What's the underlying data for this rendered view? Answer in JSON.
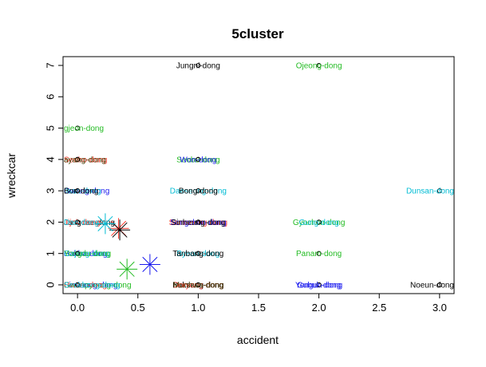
{
  "chart_data": {
    "type": "scatter",
    "title": "5cluster",
    "xlabel": "accident",
    "ylabel": "wreckcar",
    "xlim": [
      -0.12,
      3.12
    ],
    "ylim": [
      -0.28,
      7.28
    ],
    "x_ticks": [
      0.0,
      0.5,
      1.0,
      1.5,
      2.0,
      2.5,
      3.0
    ],
    "x_tick_labels": [
      "0.0",
      "0.5",
      "1.0",
      "1.5",
      "2.0",
      "2.5",
      "3.0"
    ],
    "y_ticks": [
      0,
      1,
      2,
      3,
      4,
      5,
      6,
      7
    ],
    "y_tick_labels": [
      "0",
      "1",
      "2",
      "3",
      "4",
      "5",
      "6",
      "7"
    ],
    "grid": false,
    "legend": "none",
    "points": [
      {
        "x": 1,
        "y": 7,
        "label": "Jungni-dong",
        "color": "#000000"
      },
      {
        "x": 2,
        "y": 7,
        "label": "Ojeong-dong",
        "color": "#22bb22"
      },
      {
        "x": 0,
        "y": 5,
        "label": "gjeon-dong",
        "color": "#22bb22"
      },
      {
        "x": 0,
        "y": 4,
        "label": "Seoho-dong",
        "color": "#ff3b30"
      },
      {
        "x": 0,
        "y": 4,
        "label": "ayang-dong",
        "color": "#3a3a00"
      },
      {
        "x": 1,
        "y": 4,
        "label": "Seobu-dong",
        "color": "#22bb22"
      },
      {
        "x": 1,
        "y": 4,
        "label": "Won-dong",
        "color": "#1a1aee"
      },
      {
        "x": 0,
        "y": 3,
        "label": "Gwang-dong",
        "color": "#1a1aee"
      },
      {
        "x": 0,
        "y": 3,
        "label": "Ilsan-dong",
        "color": "#00bcd4"
      },
      {
        "x": 0,
        "y": 3,
        "label": "Bon-dong",
        "color": "#000000"
      },
      {
        "x": 1,
        "y": 3,
        "label": "Daeseong-dong",
        "color": "#00bcd4"
      },
      {
        "x": 1,
        "y": 3,
        "label": "Bong-dong",
        "color": "#000000"
      },
      {
        "x": 3,
        "y": 3,
        "label": "Dunsan-dong",
        "color": "#00bcd4"
      },
      {
        "x": 0,
        "y": 2,
        "label": "Jangdae-dong",
        "color": "#000000"
      },
      {
        "x": 0,
        "y": 2,
        "label": "Jijok-dong",
        "color": "#ff3b30"
      },
      {
        "x": 0,
        "y": 2,
        "label": "Dae-dong",
        "color": "#00bcd4"
      },
      {
        "x": 1,
        "y": 2,
        "label": "Samseong-dong",
        "color": "#ff3b30"
      },
      {
        "x": 1,
        "y": 2,
        "label": "Songchon-dong",
        "color": "#1a1aee"
      },
      {
        "x": 1,
        "y": 2,
        "label": "Sinheung-dong",
        "color": "#000000"
      },
      {
        "x": 2,
        "y": 2,
        "label": "Gyochon-dong",
        "color": "#22bb22"
      },
      {
        "x": 2,
        "y": 2,
        "label": "Gung-dong",
        "color": "#00bcd4"
      },
      {
        "x": 0,
        "y": 1,
        "label": "Hakha-dong",
        "color": "#1a1aee"
      },
      {
        "x": 0,
        "y": 1,
        "label": "Gajang-dong",
        "color": "#00bcd4"
      },
      {
        "x": 0,
        "y": 1,
        "label": "Yongdu-dong",
        "color": "#22bb22"
      },
      {
        "x": 1,
        "y": 1,
        "label": "Byeon-dong",
        "color": "#00bcd4"
      },
      {
        "x": 1,
        "y": 1,
        "label": "Tanbang-dong",
        "color": "#000000"
      },
      {
        "x": 2,
        "y": 1,
        "label": "Panam-dong",
        "color": "#22bb22"
      },
      {
        "x": 0,
        "y": 0,
        "label": "Sinseong-dong",
        "color": "#1a1aee"
      },
      {
        "x": 0,
        "y": 0,
        "label": "Gwanpyeong-dong",
        "color": "#22bb22"
      },
      {
        "x": 0,
        "y": 0,
        "label": "Hwam-dong",
        "color": "#ff3b30"
      },
      {
        "x": 0,
        "y": 0,
        "label": "Seokbong-dong",
        "color": "#00bcd4"
      },
      {
        "x": 1,
        "y": 0,
        "label": "Buksang-dong",
        "color": "#000000"
      },
      {
        "x": 1,
        "y": 0,
        "label": "Doryong-dong",
        "color": "#ff3b30"
      },
      {
        "x": 1,
        "y": 0,
        "label": "Munhwa-dong",
        "color": "#3a3a00"
      },
      {
        "x": 2,
        "y": 0,
        "label": "Yongun-dong",
        "color": "#1a1aee"
      },
      {
        "x": 2,
        "y": 0,
        "label": "Gubuk-dong",
        "color": "#1a1aee"
      },
      {
        "x": 3,
        "y": 0,
        "label": "Noeun-dong",
        "color": "#000000"
      }
    ],
    "centers": [
      {
        "x": 0.34,
        "y": 1.8,
        "color": "#ff3b30"
      },
      {
        "x": 0.35,
        "y": 1.75,
        "color": "#000000"
      },
      {
        "x": 0.41,
        "y": 0.5,
        "color": "#22bb22"
      },
      {
        "x": 0.6,
        "y": 0.65,
        "color": "#1a1aee"
      },
      {
        "x": 0.23,
        "y": 1.95,
        "color": "#00bcd4"
      }
    ]
  }
}
